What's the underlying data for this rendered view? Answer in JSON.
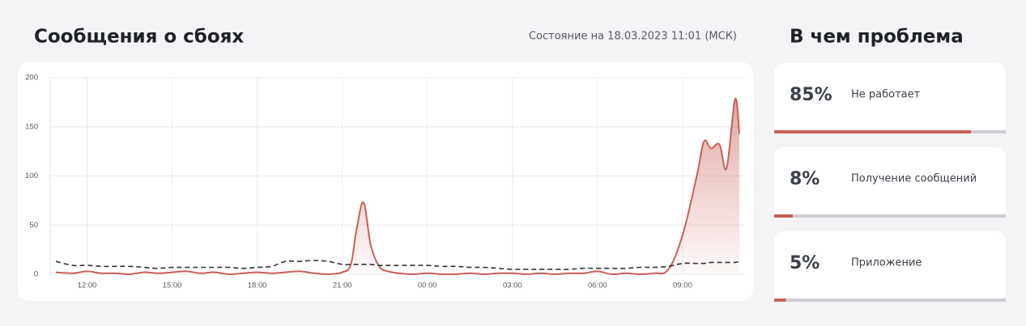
{
  "header": {
    "title": "Сообщения о сбоях",
    "status": "Состояние на 18.03.2023 11:01 (МСК)"
  },
  "chart_data": {
    "type": "line",
    "x": [
      -1.1,
      -0.5,
      0,
      0.5,
      1,
      1.5,
      2,
      2.5,
      3,
      3.5,
      4,
      4.5,
      5,
      5.5,
      6,
      6.5,
      7,
      7.5,
      8,
      8.5,
      9,
      9.3,
      9.5,
      9.75,
      10,
      10.3,
      10.6,
      11,
      11.5,
      12,
      12.5,
      13,
      13.5,
      14,
      14.5,
      15,
      15.5,
      16,
      16.5,
      17,
      17.5,
      18,
      18.5,
      19,
      19.5,
      20,
      20.5,
      21,
      21.5,
      21.75,
      22,
      22.3,
      22.55,
      22.85,
      23
    ],
    "series": [
      {
        "color": "#c9605a",
        "style": "area",
        "values": [
          2,
          1,
          3,
          1,
          1,
          0,
          2,
          1,
          2,
          3,
          1,
          2,
          0,
          1,
          2,
          1,
          2,
          3,
          1,
          0,
          2,
          10,
          45,
          73,
          30,
          8,
          3,
          1,
          0,
          1,
          0,
          0,
          1,
          0,
          1,
          1,
          0,
          1,
          0,
          1,
          1,
          3,
          0,
          1,
          0,
          1,
          5,
          40,
          100,
          135,
          128,
          132,
          108,
          178,
          143
        ]
      },
      {
        "color": "#2f3238",
        "style": "dashed",
        "values": [
          13,
          9,
          9,
          8,
          8,
          8,
          7,
          6,
          7,
          7,
          7,
          7,
          7,
          6,
          7,
          8,
          13,
          13,
          14,
          13,
          10,
          10,
          10,
          10,
          10,
          9,
          9,
          9,
          9,
          9,
          8,
          8,
          7,
          7,
          6,
          5,
          5,
          5,
          5,
          5,
          6,
          6,
          6,
          6,
          7,
          7,
          8,
          11,
          11,
          11,
          12,
          12,
          12,
          12,
          13
        ]
      }
    ],
    "xlim": [
      -1.3,
      23.2
    ],
    "xticks": [
      {
        "value": 0,
        "label": "12:00"
      },
      {
        "value": 3,
        "label": "15:00"
      },
      {
        "value": 6,
        "label": "18:00"
      },
      {
        "value": 9,
        "label": "21:00"
      },
      {
        "value": 12,
        "label": "00:00"
      },
      {
        "value": 15,
        "label": "03:00"
      },
      {
        "value": 18,
        "label": "06:00"
      },
      {
        "value": 21,
        "label": "09:00"
      }
    ],
    "ylim": [
      0,
      200
    ],
    "yticks": [
      0,
      50,
      100,
      150,
      200
    ],
    "grid": true
  },
  "problems": {
    "title": "В чем проблема",
    "items": [
      {
        "share": {
          "value": 85,
          "label": "85%"
        },
        "label": "Не работает"
      },
      {
        "share": {
          "value": 8,
          "label": "8%"
        },
        "label": "Получение сообщений"
      },
      {
        "share": {
          "value": 5,
          "label": "5%"
        },
        "label": "Приложение"
      }
    ]
  }
}
